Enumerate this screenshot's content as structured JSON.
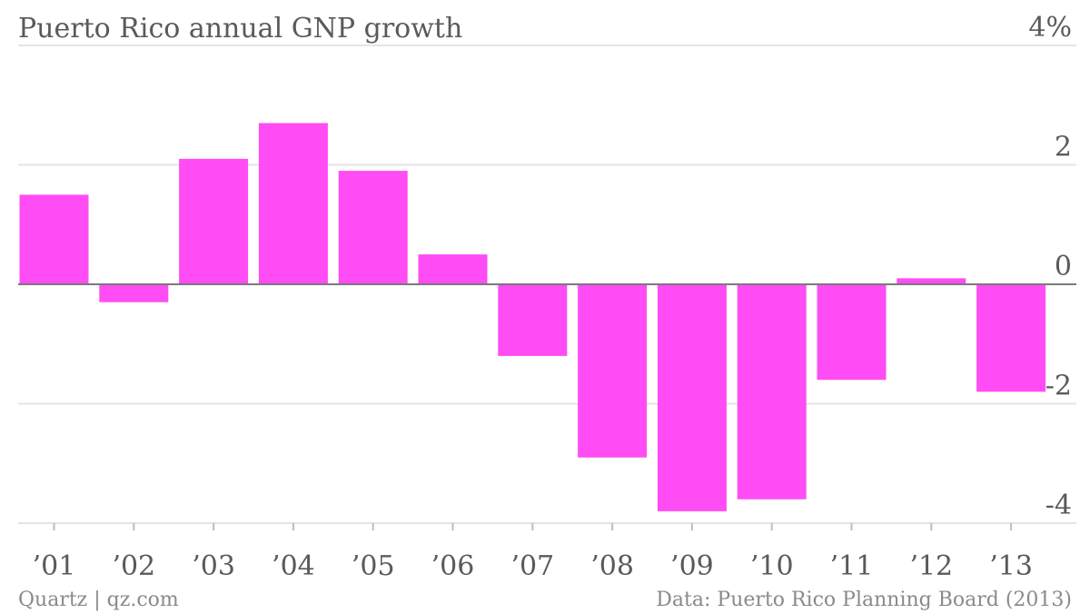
{
  "chart_data": {
    "type": "bar",
    "title": "Puerto Rico annual GNP growth",
    "categories": [
      "’01",
      "’02",
      "’03",
      "’04",
      "’05",
      "’06",
      "’07",
      "’08",
      "’09",
      "’10",
      "’11",
      "’12",
      "’13"
    ],
    "values": [
      1.5,
      -0.3,
      2.1,
      2.7,
      1.9,
      0.5,
      -1.2,
      -2.9,
      -3.8,
      -3.6,
      -1.6,
      0.1,
      -1.8
    ],
    "ylim": [
      -4,
      4
    ],
    "yticks": [
      {
        "value": 4,
        "label": "4%"
      },
      {
        "value": 2,
        "label": "2"
      },
      {
        "value": 0,
        "label": "0"
      },
      {
        "value": -2,
        "label": "-2"
      },
      {
        "value": -4,
        "label": "-4"
      }
    ],
    "xlabel": "",
    "ylabel": "",
    "grid": true,
    "bar_color": "#ff4cf4"
  },
  "footer": {
    "source_left": "Quartz | qz.com",
    "source_right": "Data: Puerto Rico Planning Board (2013)"
  }
}
